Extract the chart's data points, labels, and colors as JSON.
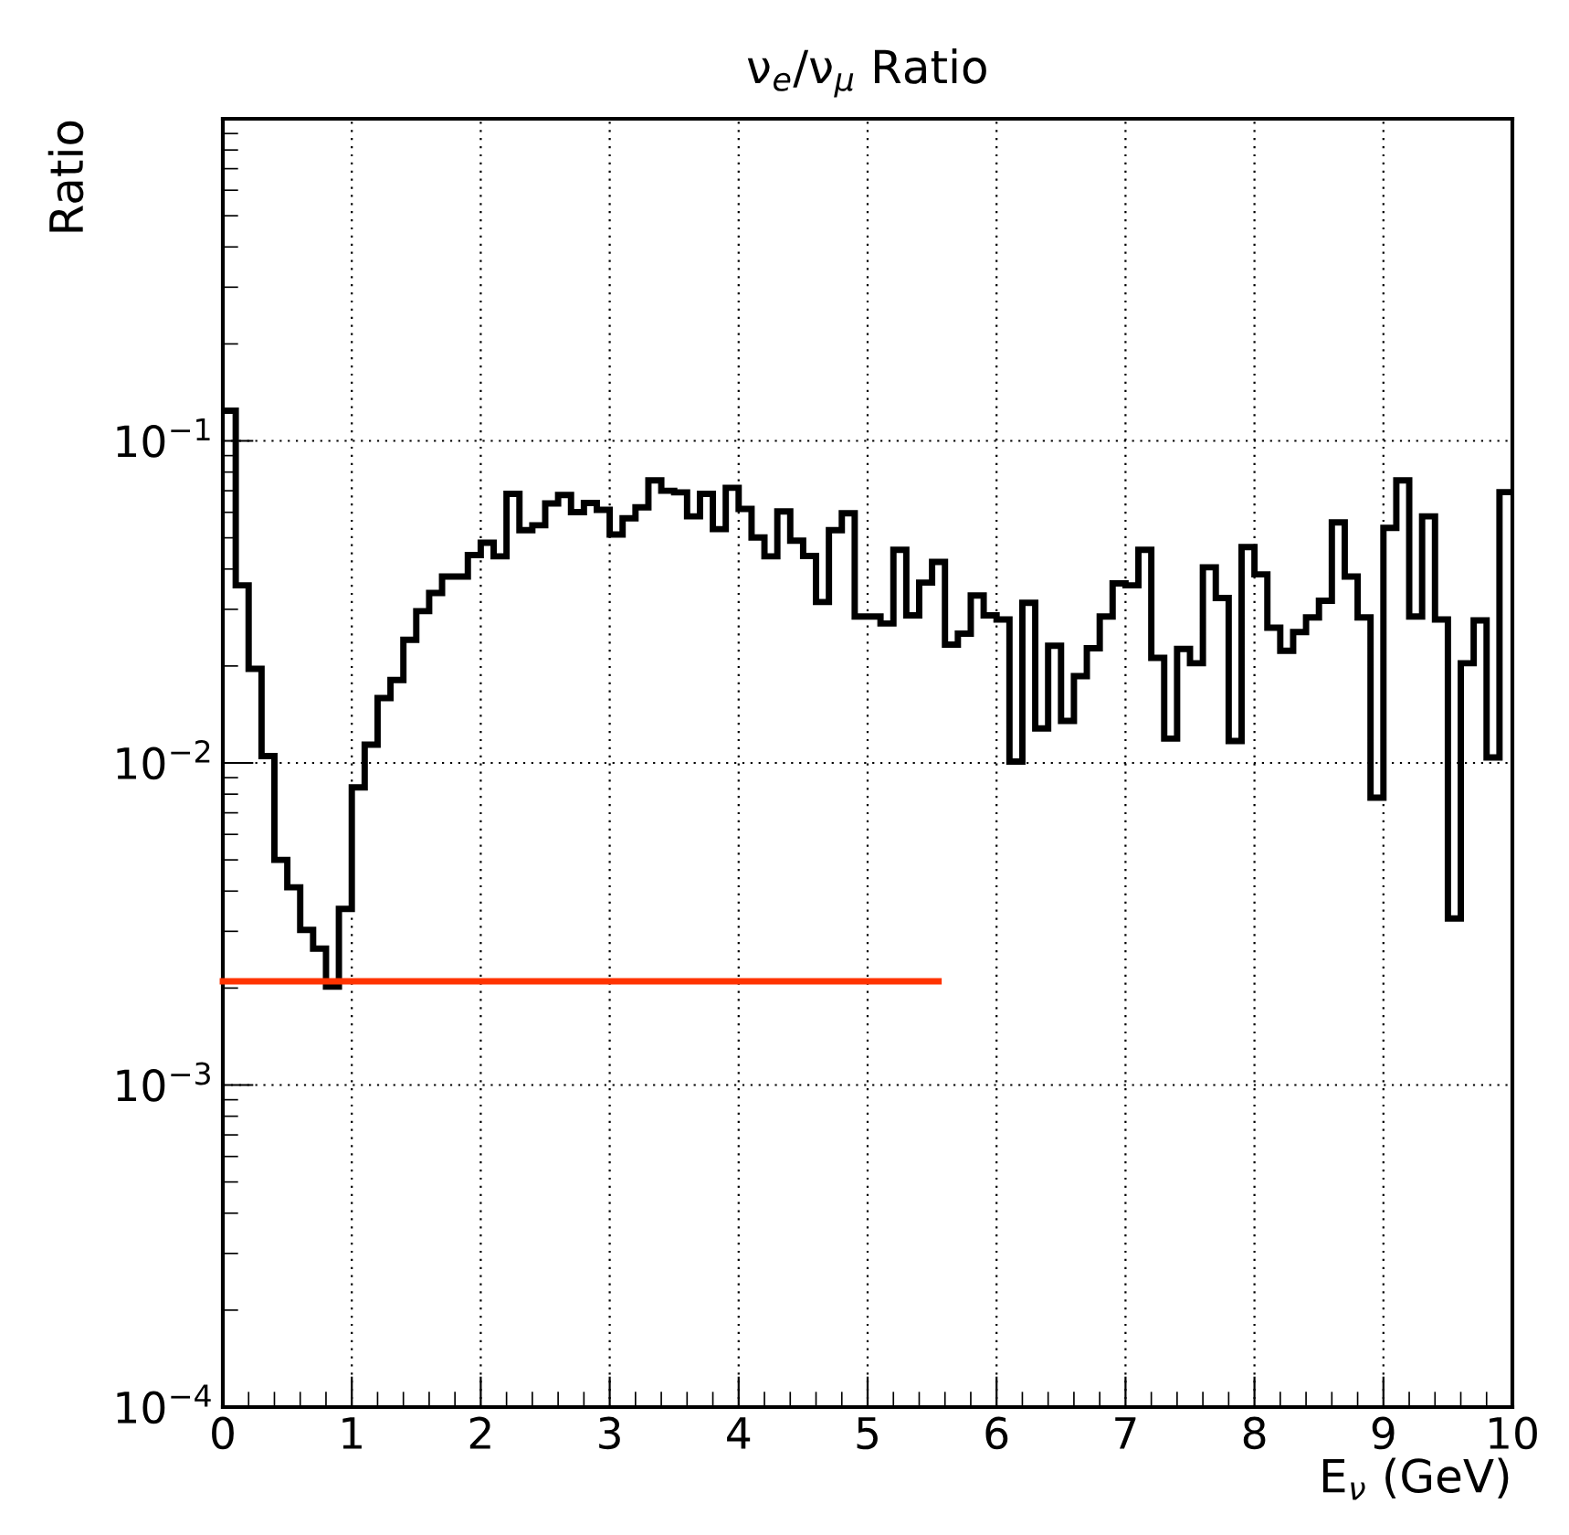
{
  "chart_data": {
    "type": "histogram",
    "title": "ν$_{e}$/ν$_{μ}$ Ratio",
    "xlabel": "E$_{ν}$ (GeV)",
    "ylabel": "Ratio",
    "bins": [
      0,
      0.1,
      0.2,
      0.3,
      0.4,
      0.5,
      0.6,
      0.7,
      0.8,
      0.9,
      1,
      1.1,
      1.2,
      1.3,
      1.4,
      1.5,
      1.6,
      1.7,
      1.8,
      1.9,
      2,
      2.1,
      2.2,
      2.3,
      2.4,
      2.5,
      2.6,
      2.7,
      2.8,
      2.9,
      3,
      3.1,
      3.2,
      3.3,
      3.4,
      3.5,
      3.6,
      3.7,
      3.8,
      3.9,
      4,
      4.1,
      4.2,
      4.3,
      4.4,
      4.5,
      4.6,
      4.7,
      4.8,
      4.9,
      5,
      5.1,
      5.2,
      5.3,
      5.4,
      5.5,
      5.6,
      5.7,
      5.8,
      5.9,
      6,
      6.1,
      6.2,
      6.3,
      6.4,
      6.5,
      6.6,
      6.7,
      6.8,
      6.9,
      7,
      7.1,
      7.2,
      7.3,
      7.4,
      7.5,
      7.6,
      7.7,
      7.8,
      7.9,
      8,
      8.1,
      8.2,
      8.3,
      8.4,
      8.5,
      8.6,
      8.7,
      8.8,
      8.9,
      9,
      9.1,
      9.2,
      9.3,
      9.4,
      9.5,
      9.6,
      9.7,
      9.8,
      9.9,
      10
    ],
    "series": [
      {
        "color": "#000000",
        "values": [
          0.124,
          0.0356,
          0.0196,
          0.0105,
          0.005,
          0.00411,
          0.00303,
          0.00265,
          0.00202,
          0.00352,
          0.0084,
          0.0114,
          0.0159,
          0.0181,
          0.0241,
          0.0296,
          0.0337,
          0.0379,
          0.0379,
          0.0442,
          0.0483,
          0.0438,
          0.0685,
          0.0528,
          0.0547,
          0.0639,
          0.0679,
          0.0601,
          0.0641,
          0.0611,
          0.0512,
          0.0575,
          0.0622,
          0.0754,
          0.07,
          0.0692,
          0.0583,
          0.0685,
          0.0532,
          0.0715,
          0.0615,
          0.0501,
          0.0438,
          0.0604,
          0.049,
          0.0439,
          0.0316,
          0.0528,
          0.0596,
          0.0285,
          0.0285,
          0.0271,
          0.0459,
          0.0287,
          0.0363,
          0.0421,
          0.0233,
          0.0252,
          0.0331,
          0.0287,
          0.0279,
          0.0101,
          0.0314,
          0.0128,
          0.0231,
          0.0135,
          0.0186,
          0.0227,
          0.0285,
          0.0361,
          0.0356,
          0.0459,
          0.0212,
          0.0119,
          0.0226,
          0.0204,
          0.0405,
          0.0325,
          0.0117,
          0.0468,
          0.0385,
          0.0263,
          0.0223,
          0.0255,
          0.0283,
          0.0319,
          0.0558,
          0.0379,
          0.0283,
          0.0078,
          0.0537,
          0.0754,
          0.0285,
          0.0583,
          0.0279,
          0.00329,
          0.0204,
          0.0277,
          0.0104,
          0.0693
        ]
      },
      {
        "type": "line",
        "color": "#ff3300",
        "x": [
          0,
          5.55
        ],
        "values": [
          0.0021,
          0.0021
        ]
      }
    ],
    "log": "y",
    "xlim": [
      0,
      10
    ],
    "ylim": [
      0.0001,
      1
    ],
    "xticks": [
      0,
      1,
      2,
      3,
      4,
      5,
      6,
      7,
      8,
      9,
      10
    ],
    "yticks": [
      {
        "value": 0.0001,
        "label": "10$^{−4}$"
      },
      {
        "value": 0.001,
        "label": "10$^{−3}$"
      },
      {
        "value": 0.01,
        "label": "10$^{−2}$"
      },
      {
        "value": 0.1,
        "label": "10$^{−1}$"
      }
    ],
    "grid": true
  }
}
